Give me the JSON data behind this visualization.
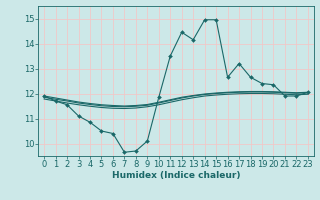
{
  "xlabel": "Humidex (Indice chaleur)",
  "ylabel": "",
  "bg_color": "#cce8e8",
  "grid_color": "#f0c8c8",
  "line_color": "#1a6868",
  "xlim": [
    -0.5,
    23.5
  ],
  "ylim": [
    9.5,
    15.5
  ],
  "yticks": [
    10,
    11,
    12,
    13,
    14,
    15
  ],
  "xticks": [
    0,
    1,
    2,
    3,
    4,
    5,
    6,
    7,
    8,
    9,
    10,
    11,
    12,
    13,
    14,
    15,
    16,
    17,
    18,
    19,
    20,
    21,
    22,
    23
  ],
  "main_x": [
    0,
    1,
    2,
    3,
    4,
    5,
    6,
    7,
    8,
    9,
    10,
    11,
    12,
    13,
    14,
    15,
    16,
    17,
    18,
    19,
    20,
    21,
    22,
    23
  ],
  "main_y": [
    11.9,
    11.7,
    11.55,
    11.1,
    10.85,
    10.5,
    10.4,
    9.65,
    9.7,
    10.1,
    11.85,
    13.5,
    14.45,
    14.15,
    14.95,
    14.95,
    12.65,
    13.2,
    12.65,
    12.4,
    12.35,
    11.9,
    11.9,
    12.05
  ],
  "line2_x": [
    0,
    1,
    2,
    3,
    4,
    5,
    6,
    7,
    8,
    9,
    10,
    11,
    12,
    13,
    14,
    15,
    16,
    17,
    18,
    19,
    20,
    21,
    22,
    23
  ],
  "line2_y": [
    11.9,
    11.82,
    11.74,
    11.66,
    11.6,
    11.55,
    11.52,
    11.5,
    11.52,
    11.56,
    11.65,
    11.75,
    11.85,
    11.92,
    11.98,
    12.02,
    12.05,
    12.07,
    12.08,
    12.08,
    12.07,
    12.05,
    12.03,
    12.05
  ],
  "line3_x": [
    0,
    1,
    2,
    3,
    4,
    5,
    6,
    7,
    8,
    9,
    10,
    11,
    12,
    13,
    14,
    15,
    16,
    17,
    18,
    19,
    20,
    21,
    22,
    23
  ],
  "line3_y": [
    11.85,
    11.77,
    11.7,
    11.62,
    11.56,
    11.51,
    11.48,
    11.47,
    11.49,
    11.53,
    11.62,
    11.72,
    11.82,
    11.9,
    11.96,
    12.0,
    12.03,
    12.05,
    12.06,
    12.06,
    12.05,
    12.03,
    12.01,
    12.03
  ],
  "line4_x": [
    0,
    1,
    2,
    3,
    4,
    5,
    6,
    7,
    8,
    9,
    10,
    11,
    12,
    13,
    14,
    15,
    16,
    17,
    18,
    19,
    20,
    21,
    22,
    23
  ],
  "line4_y": [
    11.78,
    11.7,
    11.62,
    11.55,
    11.49,
    11.44,
    11.41,
    11.4,
    11.42,
    11.47,
    11.55,
    11.65,
    11.75,
    11.83,
    11.9,
    11.94,
    11.97,
    11.99,
    12.0,
    12.0,
    11.99,
    11.97,
    11.95,
    11.97
  ]
}
